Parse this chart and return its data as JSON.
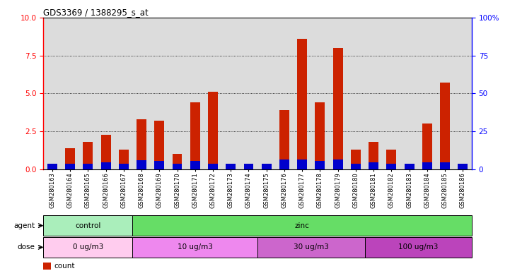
{
  "title": "GDS3369 / 1388295_s_at",
  "samples": [
    "GSM280163",
    "GSM280164",
    "GSM280165",
    "GSM280166",
    "GSM280167",
    "GSM280168",
    "GSM280169",
    "GSM280170",
    "GSM280171",
    "GSM280172",
    "GSM280173",
    "GSM280174",
    "GSM280175",
    "GSM280176",
    "GSM280177",
    "GSM280178",
    "GSM280179",
    "GSM280180",
    "GSM280181",
    "GSM280182",
    "GSM280183",
    "GSM280184",
    "GSM280185",
    "GSM280186"
  ],
  "count_values": [
    0.05,
    1.4,
    1.8,
    2.3,
    1.3,
    3.3,
    3.2,
    1.0,
    4.4,
    5.1,
    0.05,
    0.05,
    0.05,
    3.9,
    8.6,
    4.4,
    8.0,
    1.3,
    1.8,
    1.3,
    0.05,
    3.0,
    5.7,
    0.05
  ],
  "percentile_values": [
    0.35,
    0.35,
    0.35,
    0.45,
    0.35,
    0.6,
    0.55,
    0.35,
    0.55,
    0.35,
    0.35,
    0.35,
    0.35,
    0.65,
    0.65,
    0.55,
    0.65,
    0.35,
    0.45,
    0.35,
    0.35,
    0.45,
    0.45,
    0.35
  ],
  "bar_color": "#CC2200",
  "dot_color": "#0000CC",
  "ylim_left": [
    0,
    10
  ],
  "ylim_right": [
    0,
    100
  ],
  "yticks_left": [
    0,
    2.5,
    5,
    7.5,
    10
  ],
  "yticks_right": [
    0,
    25,
    50,
    75,
    100
  ],
  "grid_values": [
    2.5,
    5.0,
    7.5
  ],
  "agent_groups": [
    {
      "label": "control",
      "start": 0,
      "end": 5,
      "color": "#AAEEBB"
    },
    {
      "label": "zinc",
      "start": 5,
      "end": 24,
      "color": "#66DD66"
    }
  ],
  "dose_groups": [
    {
      "label": "0 ug/m3",
      "start": 0,
      "end": 5,
      "color": "#FFCCEE"
    },
    {
      "label": "10 ug/m3",
      "start": 5,
      "end": 12,
      "color": "#EE88EE"
    },
    {
      "label": "30 ug/m3",
      "start": 12,
      "end": 18,
      "color": "#CC66CC"
    },
    {
      "label": "100 ug/m3",
      "start": 18,
      "end": 24,
      "color": "#BB44BB"
    }
  ],
  "bar_width": 0.55,
  "agent_row_label": "agent",
  "dose_row_label": "dose",
  "plot_bg": "#DCDCDC"
}
